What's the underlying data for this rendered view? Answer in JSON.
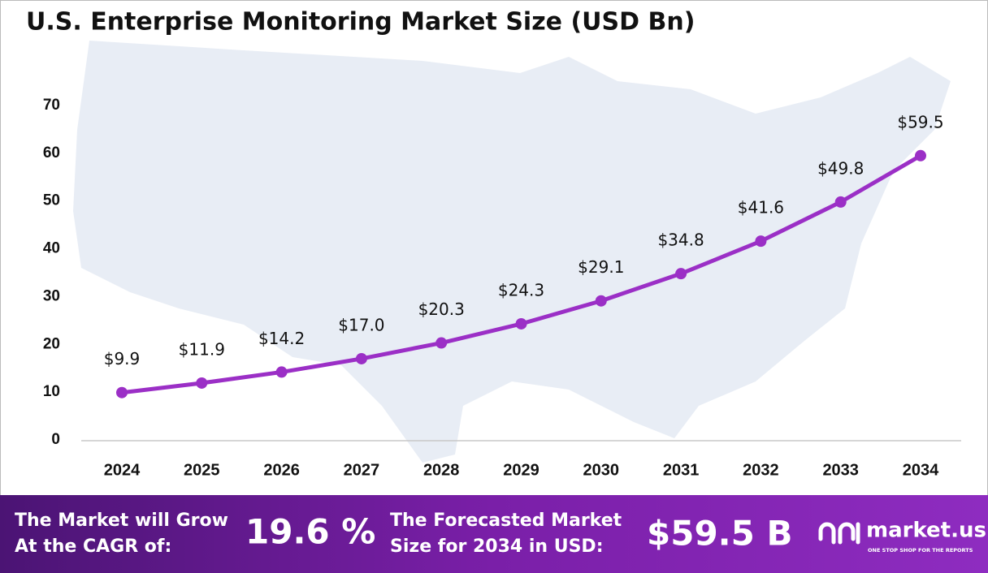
{
  "chart_data": {
    "type": "line",
    "title": "U.S. Enterprise Monitoring Market Size (USD Bn)",
    "categories": [
      "2024",
      "2025",
      "2026",
      "2027",
      "2028",
      "2029",
      "2030",
      "2031",
      "2032",
      "2033",
      "2034"
    ],
    "values": [
      9.9,
      11.9,
      14.2,
      17.0,
      20.3,
      24.3,
      29.1,
      34.8,
      41.6,
      49.8,
      59.5
    ],
    "value_labels": [
      "$9.9",
      "$11.9",
      "$14.2",
      "$17.0",
      "$20.3",
      "$24.3",
      "$29.1",
      "$34.8",
      "$41.6",
      "$49.8",
      "$59.5"
    ],
    "color": "#9b2fc6",
    "ylim": [
      0,
      70
    ],
    "yticks": [
      0,
      10,
      20,
      30,
      40,
      50,
      60,
      70
    ],
    "grid": false
  },
  "footer": {
    "cagr_label": [
      "The Market will Grow",
      "At the CAGR of:"
    ],
    "cagr_value": "19.6 %",
    "forecast_label": [
      "The Forecasted Market",
      "Size for 2034 in USD:"
    ],
    "forecast_value": "$59.5 B",
    "brand": "market.us",
    "tagline": "ONE STOP SHOP FOR THE REPORTS"
  }
}
